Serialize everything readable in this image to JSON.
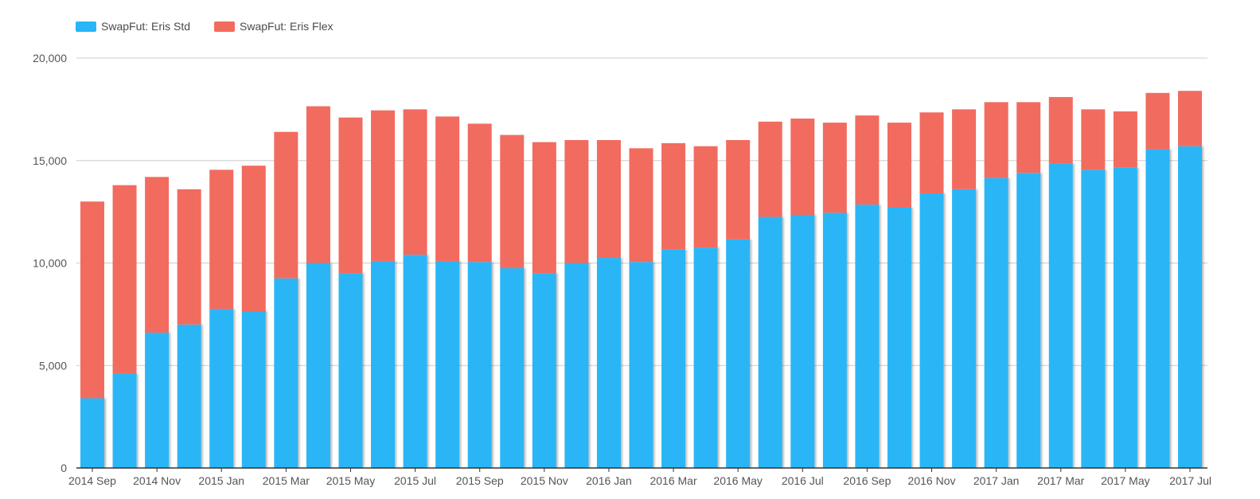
{
  "legend": {
    "items": [
      {
        "label": "SwapFut: Eris Std",
        "color": "#29b6f6"
      },
      {
        "label": "SwapFut: Eris Flex",
        "color": "#f26b5f"
      }
    ]
  },
  "chart_data": {
    "type": "bar",
    "stacked": true,
    "grid": true,
    "legend_position": "top-left",
    "ylim": [
      0,
      20000
    ],
    "yticks": [
      0,
      5000,
      10000,
      15000,
      20000
    ],
    "ytick_labels": [
      "0",
      "5,000",
      "10,000",
      "15,000",
      "20,000"
    ],
    "categories": [
      "2014 Sep",
      "2014 Oct",
      "2014 Nov",
      "2014 Dec",
      "2015 Jan",
      "2015 Feb",
      "2015 Mar",
      "2015 Apr",
      "2015 May",
      "2015 Jun",
      "2015 Jul",
      "2015 Aug",
      "2015 Sep",
      "2015 Oct",
      "2015 Nov",
      "2015 Dec",
      "2016 Jan",
      "2016 Feb",
      "2016 Mar",
      "2016 Apr",
      "2016 May",
      "2016 Jun",
      "2016 Jul",
      "2016 Aug",
      "2016 Sep",
      "2016 Oct",
      "2016 Nov",
      "2016 Dec",
      "2017 Jan",
      "2017 Feb",
      "2017 Mar",
      "2017 Apr",
      "2017 May",
      "2017 Jun",
      "2017 Jul"
    ],
    "xtick_labels": [
      "2014 Sep",
      "2014 Nov",
      "2015 Jan",
      "2015 Mar",
      "2015 May",
      "2015 Jul",
      "2015 Sep",
      "2015 Nov",
      "2016 Jan",
      "2016 Mar",
      "2016 May",
      "2016 Jul",
      "2016 Sep",
      "2016 Nov",
      "2017 Jan",
      "2017 Mar",
      "2017 May",
      "2017 Jul"
    ],
    "series": [
      {
        "name": "SwapFut: Eris Std",
        "color": "#29b6f6",
        "values": [
          3400,
          4600,
          6600,
          7000,
          7750,
          7650,
          9250,
          10000,
          9500,
          10100,
          10400,
          10100,
          10050,
          9750,
          9500,
          10000,
          10250,
          10050,
          10650,
          10750,
          11150,
          12250,
          12350,
          12450,
          12850,
          12700,
          13400,
          13600,
          14150,
          14400,
          14850,
          14550,
          14650,
          15550,
          15700
        ]
      },
      {
        "name": "SwapFut: Eris Flex",
        "color": "#f26b5f",
        "values": [
          9600,
          9200,
          7600,
          6600,
          6800,
          7100,
          7150,
          7650,
          7600,
          7350,
          7100,
          7050,
          6750,
          6500,
          6400,
          6000,
          5750,
          5550,
          5200,
          4950,
          4850,
          4650,
          4700,
          4400,
          4350,
          4150,
          3950,
          3900,
          3700,
          3450,
          3250,
          2950,
          2750,
          2750,
          2700
        ]
      }
    ]
  }
}
